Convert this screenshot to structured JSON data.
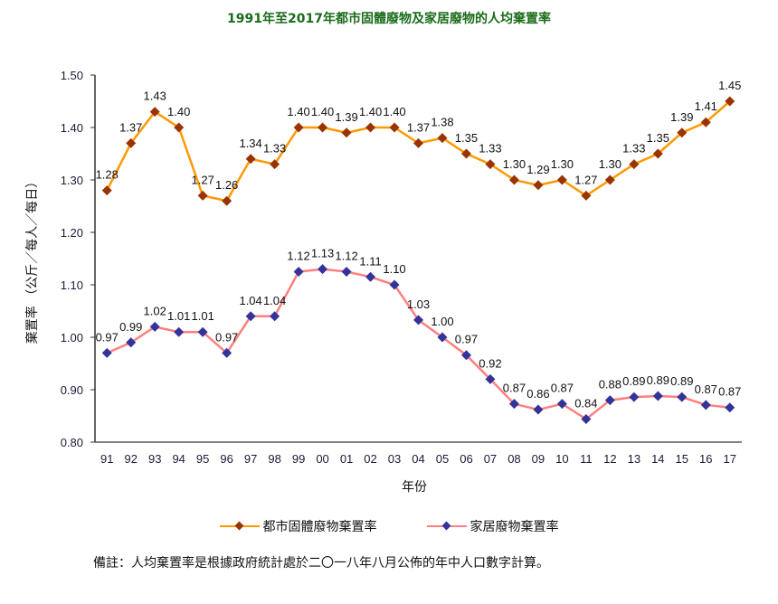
{
  "chart_data": {
    "type": "line",
    "title": "1991年至2017年都市固體廢物及家居廢物的人均棄置率",
    "xlabel": "年份",
    "ylabel": "棄置率 （公斤／每人／每日）",
    "categories": [
      "91",
      "92",
      "93",
      "94",
      "95",
      "96",
      "97",
      "98",
      "99",
      "00",
      "01",
      "02",
      "03",
      "04",
      "05",
      "06",
      "07",
      "08",
      "09",
      "10",
      "11",
      "12",
      "13",
      "14",
      "15",
      "16",
      "17"
    ],
    "ylim": [
      0.8,
      1.5
    ],
    "yticks": [
      "0.80",
      "0.90",
      "1.00",
      "1.10",
      "1.20",
      "1.30",
      "1.40",
      "1.50"
    ],
    "grid": false,
    "legend_position": "bottom",
    "series": [
      {
        "name": "都市固體廢物棄置率",
        "line_color": "#ff9900",
        "marker_color": "#993300",
        "values": [
          1.28,
          1.37,
          1.43,
          1.4,
          1.27,
          1.26,
          1.34,
          1.33,
          1.4,
          1.4,
          1.39,
          1.4,
          1.4,
          1.37,
          1.38,
          1.35,
          1.33,
          1.3,
          1.29,
          1.3,
          1.27,
          1.3,
          1.33,
          1.35,
          1.39,
          1.41,
          1.45
        ],
        "labels": [
          "1.28",
          "1.37",
          "1.43",
          "1.40",
          "1.27",
          "1.26",
          "1.34",
          "1.33",
          "1.40",
          "1.40",
          "1.39",
          "1.40",
          "1.40",
          "1.37",
          "1.38",
          "1.35",
          "1.33",
          "1.30",
          "1.29",
          "1.30",
          "1.27",
          "1.30",
          "1.33",
          "1.35",
          "1.39",
          "1.41",
          "1.45"
        ]
      },
      {
        "name": "家居廢物棄置率",
        "line_color": "#ff7f7f",
        "marker_color": "#333399",
        "values": [
          0.97,
          0.99,
          1.02,
          1.01,
          1.01,
          0.97,
          1.04,
          1.04,
          1.125,
          1.13,
          1.125,
          1.115,
          1.1,
          1.033,
          1.0,
          0.966,
          0.92,
          0.873,
          0.862,
          0.873,
          0.844,
          0.88,
          0.886,
          0.888,
          0.886,
          0.871,
          0.866
        ],
        "labels": [
          "0.97",
          "0.99",
          "1.02",
          "1.01",
          "1.01",
          "0.97",
          "1.04",
          "1.04",
          "1.12",
          "1.13",
          "1.12",
          "1.11",
          "1.10",
          "1.03",
          "1.00",
          "0.97",
          "0.92",
          "0.87",
          "0.86",
          "0.87",
          "0.84",
          "0.88",
          "0.89",
          "0.89",
          "0.89",
          "0.87",
          "0.87"
        ]
      }
    ]
  },
  "note": "備註：人均棄置率是根據政府統計處於二〇一八年八月公佈的年中人口數字計算。"
}
